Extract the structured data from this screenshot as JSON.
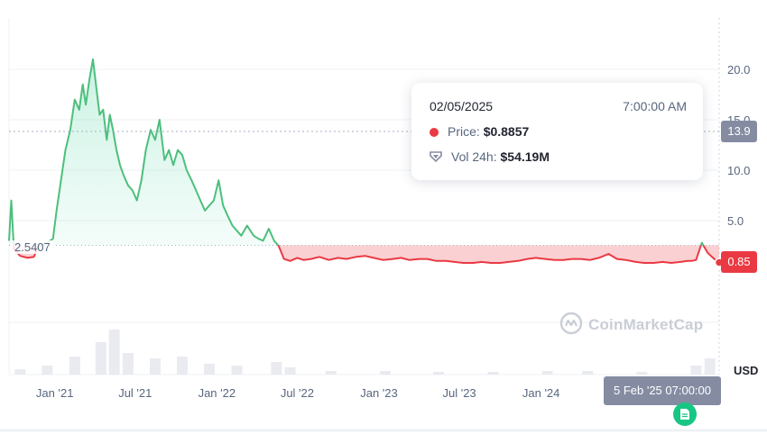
{
  "chart_data": {
    "type": "area",
    "x_unit": "date",
    "y_unit": "USD",
    "ylim": [
      0,
      25
    ],
    "y_ticks": [
      "5.0",
      "10.0",
      "15.0",
      "20.0"
    ],
    "x_ticks": [
      "Jan '21",
      "Jul '21",
      "Jan '22",
      "Jul '22",
      "Jan '23",
      "Jul '23",
      "Jan '24"
    ],
    "baseline": 2.5407,
    "baseline_label": "2.5407",
    "series": [
      {
        "x": [
          "2020-09-20",
          "2020-09-25",
          "2020-10-01",
          "2020-10-15",
          "2020-11-01",
          "2020-11-15",
          "2020-11-25",
          "2020-12-05",
          "2020-12-15",
          "2020-12-28",
          "2021-01-05",
          "2021-01-15",
          "2021-01-25",
          "2021-02-05",
          "2021-02-15",
          "2021-02-25",
          "2021-03-05",
          "2021-03-12",
          "2021-03-20",
          "2021-03-28",
          "2021-04-05",
          "2021-04-12",
          "2021-04-20",
          "2021-04-28",
          "2021-05-05",
          "2021-05-12",
          "2021-05-20",
          "2021-05-28",
          "2021-06-05",
          "2021-06-15",
          "2021-06-25",
          "2021-07-05",
          "2021-07-15",
          "2021-07-25",
          "2021-08-05",
          "2021-08-15",
          "2021-08-25",
          "2021-09-05",
          "2021-09-15",
          "2021-09-25",
          "2021-10-05",
          "2021-10-15",
          "2021-10-25",
          "2021-11-05",
          "2021-11-15",
          "2021-11-25",
          "2021-12-05",
          "2021-12-15",
          "2021-12-25",
          "2022-01-05",
          "2022-01-15",
          "2022-01-25",
          "2022-02-05",
          "2022-02-15",
          "2022-02-25",
          "2022-03-10",
          "2022-03-25",
          "2022-04-05",
          "2022-04-15",
          "2022-04-28",
          "2022-05-10",
          "2022-05-20",
          "2022-06-01",
          "2022-06-15",
          "2022-07-01",
          "2022-07-15",
          "2022-08-01",
          "2022-08-20",
          "2022-09-10",
          "2022-10-01",
          "2022-10-20",
          "2022-11-10",
          "2022-12-01",
          "2022-12-20",
          "2023-01-10",
          "2023-02-01",
          "2023-02-20",
          "2023-03-10",
          "2023-04-01",
          "2023-04-20",
          "2023-05-10",
          "2023-06-01",
          "2023-06-20",
          "2023-07-10",
          "2023-08-01",
          "2023-08-20",
          "2023-09-10",
          "2023-10-01",
          "2023-10-20",
          "2023-11-10",
          "2023-12-01",
          "2023-12-20",
          "2024-01-10",
          "2024-02-01",
          "2024-02-20",
          "2024-03-10",
          "2024-04-01",
          "2024-04-20",
          "2024-05-10",
          "2024-06-01",
          "2024-06-20",
          "2024-07-10",
          "2024-08-01",
          "2024-08-20",
          "2024-09-10",
          "2024-10-01",
          "2024-10-20",
          "2024-11-10",
          "2024-11-25",
          "2024-12-05",
          "2024-12-15",
          "2024-12-28",
          "2025-01-10",
          "2025-01-25",
          "2025-02-05"
        ],
        "values": [
          3.0,
          7.0,
          2.2,
          1.5,
          1.3,
          1.4,
          2.5,
          2.6,
          2.8,
          3.2,
          6.0,
          9.0,
          12.0,
          14.0,
          17.0,
          16.0,
          18.5,
          16.5,
          19.0,
          21.0,
          18.0,
          15.5,
          16.0,
          13.0,
          15.5,
          14.0,
          12.0,
          10.5,
          9.5,
          8.5,
          8.0,
          7.0,
          9.0,
          12.0,
          14.0,
          13.0,
          15.0,
          11.0,
          12.0,
          10.5,
          12.0,
          11.5,
          10.0,
          9.0,
          8.0,
          7.0,
          6.0,
          6.5,
          7.0,
          9.0,
          6.5,
          5.5,
          4.5,
          4.0,
          3.5,
          4.5,
          3.5,
          3.2,
          3.0,
          4.2,
          3.0,
          2.5,
          1.2,
          1.0,
          1.3,
          1.1,
          1.2,
          1.4,
          1.1,
          1.3,
          1.2,
          1.4,
          1.5,
          1.3,
          1.1,
          1.2,
          1.3,
          1.1,
          1.2,
          1.2,
          1.0,
          1.0,
          0.9,
          0.8,
          0.8,
          0.9,
          0.8,
          0.8,
          0.9,
          1.0,
          1.2,
          1.3,
          1.2,
          1.1,
          1.1,
          1.2,
          1.2,
          1.1,
          1.3,
          1.7,
          1.2,
          1.1,
          0.9,
          0.8,
          0.8,
          0.9,
          0.8,
          0.9,
          1.0,
          1.0,
          1.1,
          2.8,
          1.8,
          1.2,
          0.85
        ]
      }
    ],
    "volume": {
      "x": [
        "2020-10",
        "2020-12",
        "2021-02",
        "2021-04",
        "2021-05",
        "2021-06",
        "2021-08",
        "2021-10",
        "2021-12",
        "2022-02",
        "2022-05",
        "2022-06",
        "2022-09",
        "2023-01",
        "2023-05",
        "2023-09",
        "2024-01",
        "2024-04",
        "2024-08",
        "2024-12",
        "2025-01"
      ],
      "values": [
        0.3,
        0.5,
        1.0,
        1.8,
        2.5,
        1.2,
        0.9,
        1.0,
        0.6,
        0.5,
        0.7,
        0.4,
        0.2,
        0.2,
        0.15,
        0.15,
        0.2,
        0.2,
        0.15,
        0.5,
        0.9
      ]
    }
  },
  "tooltip": {
    "date": "02/05/2025",
    "time": "7:00:00 AM",
    "price_label": "Price:",
    "price_value": "$0.8857",
    "vol_label": "Vol 24h:",
    "vol_value": "$54.19M"
  },
  "current_price_label": "0.85",
  "crosshair_price_label": "13.9",
  "crosshair_time_label": "5 Feb '25 07:00:00",
  "currency_label": "USD",
  "watermark_text": "CoinMarketCap",
  "colors": {
    "up": "#16c784",
    "up_line": "#4dbf7c",
    "down": "#ea3943",
    "grid": "#eff2f5",
    "axis_text": "#58667e"
  }
}
